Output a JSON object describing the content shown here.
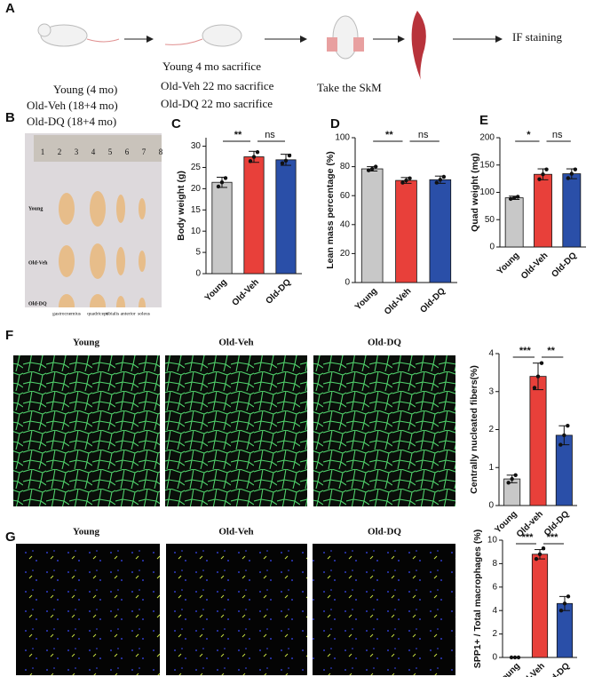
{
  "panel_labels": [
    "A",
    "B",
    "C",
    "D",
    "E",
    "F",
    "G"
  ],
  "schematic": {
    "start": [
      "Young (4 mo)",
      "Old-Veh (18+4 mo)",
      "Old-DQ (18+4 mo)"
    ],
    "sacrifice": [
      "Young 4 mo sacrifice",
      "Old-Veh 22 mo sacrifice",
      "Old-DQ 22 mo sacrifice"
    ],
    "harvest": "Take the SkM",
    "end": "IF staining"
  },
  "photo": {
    "ruler": [
      "1",
      "2",
      "3",
      "4",
      "5",
      "6",
      "7",
      "8"
    ],
    "rows": [
      "Young",
      "Old-Veh",
      "Old-DQ"
    ],
    "muscles": [
      "gastrocnemius",
      "quadriceps",
      "tibialis anterior",
      "soleus"
    ]
  },
  "image_titles": {
    "F": [
      "Young",
      "Old-Veh",
      "Old-DQ"
    ],
    "G": [
      "Young",
      "Old-Veh",
      "Old-DQ"
    ]
  },
  "chart_data": [
    {
      "type": "bar",
      "ylabel": "Body weight (g)",
      "categories": [
        "Young",
        "Old-Veh",
        "Old-DQ"
      ],
      "values": [
        21.5,
        27.5,
        26.8
      ],
      "errors": [
        1.2,
        1.3,
        1.3
      ],
      "points": [
        [
          20.5,
          21.5,
          22.5
        ],
        [
          26.5,
          27.5,
          28.6
        ],
        [
          26,
          26.6,
          27.8
        ]
      ],
      "colors": [
        "#c8c8c8",
        "#e8403a",
        "#2a4fa8"
      ],
      "ylim": [
        0,
        32
      ],
      "yticks": [
        0,
        5,
        10,
        15,
        20,
        25,
        30
      ],
      "annotations": [
        {
          "label": "**",
          "between": [
            "Young",
            "Old-Veh"
          ]
        },
        {
          "label": "ns",
          "between": [
            "Old-Veh",
            "Old-DQ"
          ]
        }
      ]
    },
    {
      "type": "bar",
      "ylabel": "Lean mass percentage (%)",
      "categories": [
        "Young",
        "Old-Veh",
        "Old-DQ"
      ],
      "values": [
        78.5,
        70.5,
        71
      ],
      "errors": [
        1.5,
        2,
        2.5
      ],
      "points": [
        [
          77.5,
          78.5,
          80
        ],
        [
          69,
          70.5,
          72
        ],
        [
          69,
          71,
          73
        ]
      ],
      "colors": [
        "#c8c8c8",
        "#e8403a",
        "#2a4fa8"
      ],
      "ylim": [
        0,
        100
      ],
      "yticks": [
        0,
        20,
        40,
        60,
        80,
        100
      ],
      "annotations": [
        {
          "label": "**",
          "between": [
            "Young",
            "Old-Veh"
          ]
        },
        {
          "label": "ns",
          "between": [
            "Old-Veh",
            "Old-DQ"
          ]
        }
      ]
    },
    {
      "type": "bar",
      "ylabel": "Quad weight (mg)",
      "categories": [
        "Young",
        "Old-Veh",
        "Old-DQ"
      ],
      "values": [
        90,
        133,
        134
      ],
      "errors": [
        3,
        10,
        9
      ],
      "points": [
        [
          88,
          90,
          92
        ],
        [
          124,
          133,
          142
        ],
        [
          126,
          134,
          142
        ]
      ],
      "colors": [
        "#c8c8c8",
        "#e8403a",
        "#2a4fa8"
      ],
      "ylim": [
        0,
        200
      ],
      "yticks": [
        0,
        50,
        100,
        150,
        200
      ],
      "annotations": [
        {
          "label": "*",
          "between": [
            "Young",
            "Old-Veh"
          ]
        },
        {
          "label": "ns",
          "between": [
            "Old-Veh",
            "Old-DQ"
          ]
        }
      ]
    },
    {
      "type": "bar",
      "ylabel": "Centrally nucleated fibers(%)",
      "categories": [
        "Young",
        "Old-veh",
        "Old-DQ"
      ],
      "values": [
        0.7,
        3.4,
        1.85
      ],
      "errors": [
        0.1,
        0.35,
        0.25
      ],
      "points": [
        [
          0.6,
          0.7,
          0.8
        ],
        [
          3.1,
          3.4,
          3.75
        ],
        [
          1.6,
          1.85,
          2.1
        ]
      ],
      "colors": [
        "#c8c8c8",
        "#e8403a",
        "#2a4fa8"
      ],
      "ylim": [
        0,
        4
      ],
      "yticks": [
        0,
        1,
        2,
        3,
        4
      ],
      "annotations": [
        {
          "label": "***",
          "between": [
            "Young",
            "Old-veh"
          ]
        },
        {
          "label": "**",
          "between": [
            "Old-veh",
            "Old-DQ"
          ]
        }
      ]
    },
    {
      "type": "bar",
      "ylabel": "SPP1+ / Total macrophages (%)",
      "categories": [
        "Young",
        "Old-Veh",
        "Old-DQ"
      ],
      "values": [
        0,
        8.8,
        4.6
      ],
      "errors": [
        0,
        0.4,
        0.6
      ],
      "points": [
        [
          0,
          0,
          0
        ],
        [
          8.4,
          8.8,
          9.3
        ],
        [
          4,
          4.6,
          5.2
        ]
      ],
      "colors": [
        "#c8c8c8",
        "#e8403a",
        "#2a4fa8"
      ],
      "ylim": [
        0,
        10
      ],
      "yticks": [
        0,
        2,
        4,
        6,
        8,
        10
      ],
      "annotations": [
        {
          "label": "***",
          "between": [
            "Young",
            "Old-Veh"
          ]
        },
        {
          "label": "***",
          "between": [
            "Old-Veh",
            "Old-DQ"
          ]
        }
      ]
    }
  ]
}
